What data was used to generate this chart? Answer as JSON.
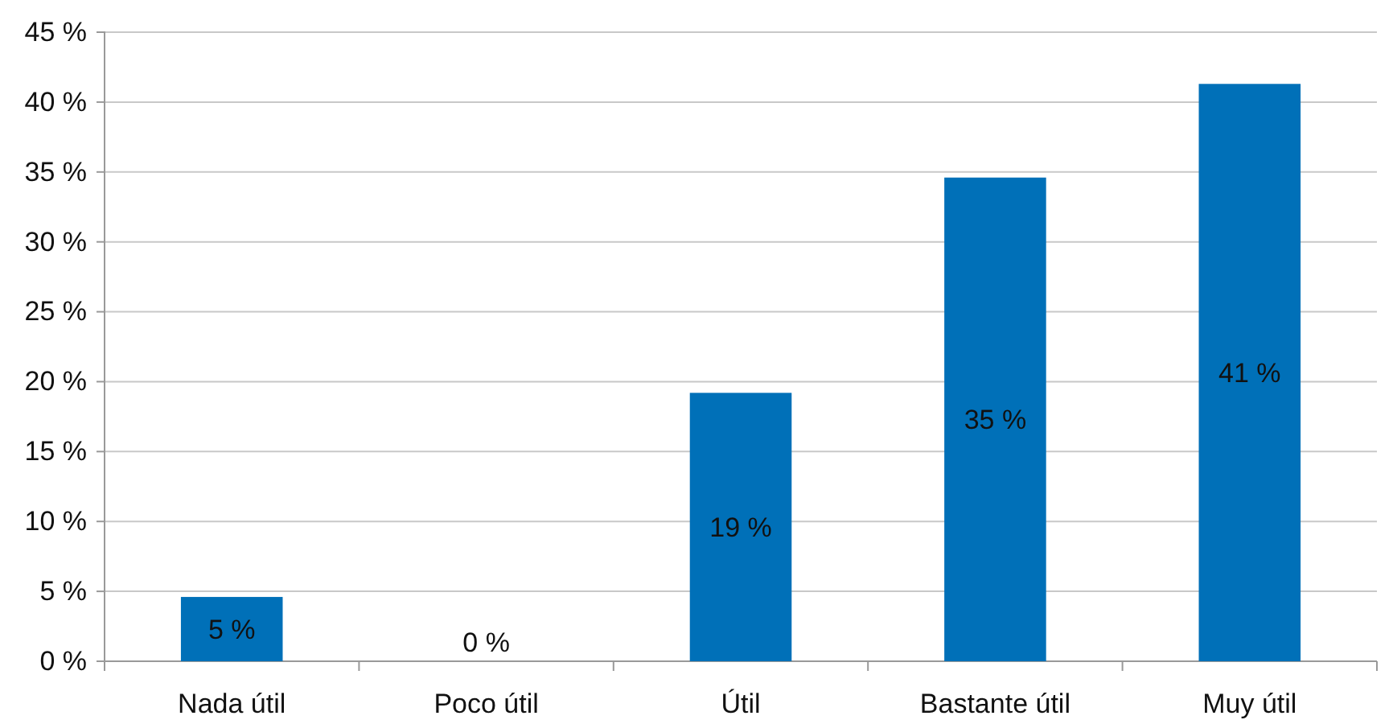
{
  "chart_data": {
    "type": "bar",
    "categories": [
      "Nada útil",
      "Poco útil",
      "Útil",
      "Bastante útil",
      "Muy útil"
    ],
    "values": [
      4.6,
      0,
      19.2,
      34.6,
      41.3
    ],
    "value_labels": [
      "5 %",
      "0 %",
      "19 %",
      "35 %",
      "41 %"
    ],
    "color": "#0070b8",
    "ylim": [
      0,
      45
    ],
    "yticks": [
      {
        "value": 0,
        "label": "0 %"
      },
      {
        "value": 5,
        "label": "5 %"
      },
      {
        "value": 10,
        "label": "10 %"
      },
      {
        "value": 15,
        "label": "15 %"
      },
      {
        "value": 20,
        "label": "20 %"
      },
      {
        "value": 25,
        "label": "25 %"
      },
      {
        "value": 30,
        "label": "30 %"
      },
      {
        "value": 35,
        "label": "35 %"
      },
      {
        "value": 40,
        "label": "40 %"
      },
      {
        "value": 45,
        "label": "45 %"
      }
    ],
    "grid": "y"
  }
}
